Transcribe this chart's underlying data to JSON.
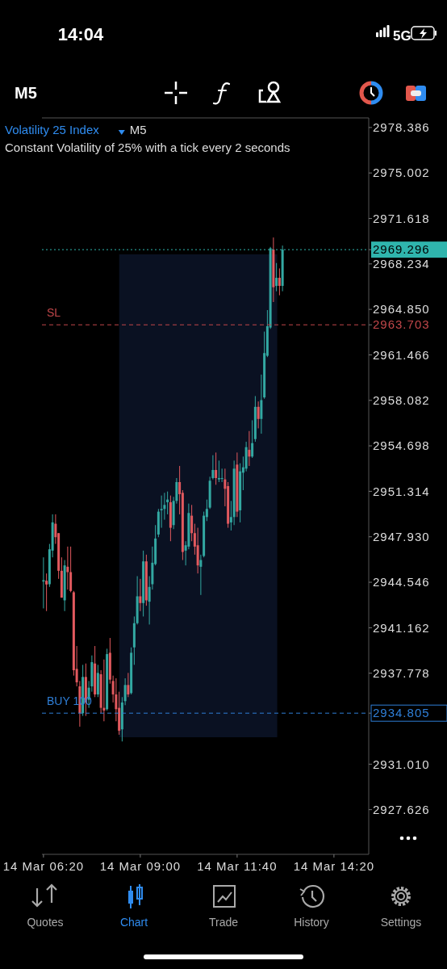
{
  "chart_data": {
    "type": "candlestick",
    "title": "Volatility 25 Index",
    "subtitle": "Constant Volatility of 25% with a tick every 2 seconds",
    "annotations": [
      "M5",
      "M5",
      "14:04",
      "5G",
      "Quotes",
      "Chart",
      "Trade",
      "History",
      "Settings"
    ],
    "categories": [
      "14 Mar 06:20",
      null,
      null,
      null,
      null,
      null,
      null,
      null,
      null,
      null,
      null,
      null,
      null,
      null,
      null,
      null,
      null,
      null,
      null,
      null,
      null,
      null,
      null,
      null,
      null,
      null,
      null,
      null,
      null,
      null,
      null,
      null,
      "14 Mar 09:00",
      null,
      null,
      null,
      null,
      null,
      null,
      null,
      null,
      null,
      null,
      null,
      null,
      null,
      null,
      null,
      null,
      null,
      null,
      null,
      null,
      null,
      null,
      null,
      null,
      null,
      null,
      null,
      null,
      null,
      null,
      null,
      "14 Mar 11:40",
      null,
      null,
      null,
      null,
      null,
      null,
      null,
      null,
      null,
      null,
      null,
      null,
      null,
      null,
      null,
      null,
      null,
      null,
      null,
      null,
      null,
      null,
      null,
      null,
      null,
      null,
      null,
      null,
      null,
      null,
      null,
      "14 Mar 14:20",
      null,
      null,
      null,
      null,
      null,
      null,
      null,
      null,
      null,
      null,
      null
    ],
    "ohlc": [
      [
        2944.6,
        2946.4,
        2942.6,
        2944.7
      ],
      [
        2944.66,
        2945.2,
        2942.4,
        2944.38
      ],
      [
        2944.4,
        2947.4,
        2944.2,
        2947.0
      ],
      [
        2946.9,
        2949.6,
        2946.4,
        2949.0
      ],
      [
        2948.9,
        2949.6,
        2947.4,
        2947.9
      ],
      [
        2948.2,
        2948.2,
        2944.8,
        2945.4
      ],
      [
        2945.4,
        2946.4,
        2943.4,
        2943.4
      ],
      [
        2943.2,
        2946.2,
        2942.4,
        2945.8
      ],
      [
        2945.7,
        2947.2,
        2944.0,
        2945.3
      ],
      [
        2945.3,
        2947.2,
        2943.8,
        2943.9
      ],
      [
        2943.8,
        2943.9,
        2937.6,
        2938.0
      ],
      [
        2938.1,
        2939.8,
        2936.8,
        2937.1
      ],
      [
        2936.8,
        2937.2,
        2933.8,
        2934.8
      ],
      [
        2934.8,
        2938.4,
        2934.6,
        2937.5
      ],
      [
        2937.5,
        2938.5,
        2934.6,
        2935.6
      ],
      [
        2935.8,
        2937.2,
        2935.2,
        2936.7
      ],
      [
        2936.8,
        2939.1,
        2936.4,
        2938.6
      ],
      [
        2938.5,
        2939.8,
        2936.0,
        2936.2
      ],
      [
        2936.2,
        2938.4,
        2936.0,
        2937.8
      ],
      [
        2937.7,
        2938.0,
        2934.8,
        2935.2
      ],
      [
        2935.2,
        2938.8,
        2934.2,
        2935.0
      ],
      [
        2935.1,
        2939.6,
        2935.0,
        2939.2
      ],
      [
        2939.3,
        2940.4,
        2937.0,
        2937.3
      ],
      [
        2937.2,
        2937.6,
        2935.6,
        2936.2
      ],
      [
        2936.2,
        2937.4,
        2934.2,
        2935.1
      ],
      [
        2935.2,
        2936.4,
        2933.2,
        2933.5
      ],
      [
        2933.6,
        2936.0,
        2932.7,
        2935.6
      ],
      [
        2935.7,
        2937.4,
        2935.4,
        2936.9
      ],
      [
        2936.9,
        2937.8,
        2936.0,
        2936.2
      ],
      [
        2936.3,
        2939.7,
        2936.2,
        2939.3
      ],
      [
        2939.7,
        2942.0,
        2938.4,
        2941.5
      ],
      [
        2941.5,
        2945.0,
        2941.4,
        2943.5
      ],
      [
        2943.5,
        2944.8,
        2942.4,
        2943.0
      ],
      [
        2943.0,
        2946.9,
        2942.0,
        2946.1
      ],
      [
        2946.1,
        2946.6,
        2942.8,
        2943.2
      ],
      [
        2943.1,
        2945.0,
        2941.4,
        2944.2
      ],
      [
        2944.4,
        2947.2,
        2944.0,
        2946.0
      ],
      [
        2945.9,
        2948.8,
        2945.8,
        2947.8
      ],
      [
        2948.1,
        2950.0,
        2947.9,
        2949.8
      ],
      [
        2949.9,
        2951.0,
        2948.6,
        2950.0
      ],
      [
        2950.0,
        2951.2,
        2949.2,
        2950.3
      ],
      [
        2950.5,
        2951.3,
        2949.6,
        2950.7
      ],
      [
        2950.5,
        2951.0,
        2947.6,
        2948.6
      ],
      [
        2948.8,
        2950.9,
        2948.5,
        2950.6
      ],
      [
        2950.6,
        2952.3,
        2950.4,
        2952.0
      ],
      [
        2952.0,
        2953.2,
        2949.6,
        2951.1
      ],
      [
        2951.2,
        2951.4,
        2946.2,
        2946.8
      ],
      [
        2946.9,
        2947.6,
        2945.8,
        2947.3
      ],
      [
        2947.2,
        2950.4,
        2947.0,
        2949.7
      ],
      [
        2949.5,
        2950.3,
        2947.6,
        2948.2
      ],
      [
        2948.2,
        2948.9,
        2946.6,
        2947.2
      ],
      [
        2947.3,
        2948.6,
        2945.2,
        2945.8
      ],
      [
        2945.7,
        2946.6,
        2943.6,
        2946.2
      ],
      [
        2946.5,
        2949.8,
        2946.4,
        2949.5
      ],
      [
        2949.4,
        2950.7,
        2949.1,
        2950.0
      ],
      [
        2950.1,
        2952.4,
        2950.0,
        2952.1
      ],
      [
        2952.3,
        2954.0,
        2952.2,
        2952.9
      ],
      [
        2952.9,
        2954.2,
        2951.8,
        2952.3
      ],
      [
        2952.2,
        2953.6,
        2952.0,
        2952.3
      ],
      [
        2952.3,
        2953.0,
        2952.0,
        2952.3
      ],
      [
        2952.2,
        2953.0,
        2950.2,
        2951.5
      ],
      [
        2951.7,
        2952.0,
        2948.6,
        2948.9
      ],
      [
        2949.0,
        2950.6,
        2948.4,
        2949.4
      ],
      [
        2949.4,
        2953.6,
        2948.8,
        2953.0
      ],
      [
        2953.3,
        2954.2,
        2949.4,
        2949.8
      ],
      [
        2949.9,
        2953.4,
        2949.0,
        2952.8
      ],
      [
        2952.7,
        2953.9,
        2951.4,
        2953.1
      ],
      [
        2953.0,
        2955.0,
        2952.8,
        2954.6
      ],
      [
        2954.4,
        2955.8,
        2953.2,
        2953.9
      ],
      [
        2953.9,
        2956.6,
        2953.8,
        2954.9
      ],
      [
        2955.2,
        2958.4,
        2955.0,
        2957.6
      ],
      [
        2957.6,
        2958.0,
        2956.0,
        2956.7
      ],
      [
        2956.7,
        2960.0,
        2955.6,
        2958.1
      ],
      [
        2958.3,
        2963.2,
        2958.2,
        2961.6
      ],
      [
        2961.4,
        2964.8,
        2961.3,
        2963.6
      ],
      [
        2963.5,
        2969.5,
        2963.4,
        2969.4
      ],
      [
        2969.3,
        2970.2,
        2965.4,
        2966.5
      ],
      [
        2966.6,
        2968.3,
        2966.2,
        2967.2
      ],
      [
        2967.2,
        2967.9,
        2965.9,
        2966.6
      ],
      [
        2966.6,
        2969.6,
        2966.2,
        2969.3
      ],
      null,
      null,
      null,
      null,
      null,
      null,
      null,
      null,
      null,
      null,
      null,
      null,
      null,
      null,
      null,
      null,
      null,
      null,
      null,
      null,
      null,
      null,
      null,
      null,
      null,
      null,
      null,
      null
    ],
    "ylim": [
      2924.3,
      2979.1
    ],
    "yticks": [
      2978.386,
      2975.002,
      2971.618,
      2969.296,
      2968.234,
      {
        "value": 2964.85,
        "label": "2964.850"
      },
      2963.703,
      2961.466,
      2958.082,
      2954.698,
      2951.314,
      {
        "value": 2947.93,
        "label": "2947.930"
      },
      2944.546,
      2941.162,
      2937.778,
      2934.805,
      {
        "value": 2931.01,
        "label": "2931.010"
      },
      2927.626
    ],
    "ref_lines": [
      {
        "axis": "y",
        "value": 2969.296,
        "color": "#2fb5ad",
        "line_style": "dotted"
      },
      {
        "axis": "y",
        "value": 2963.703,
        "label": "SL",
        "color": "#c2474a",
        "line_style": "dashed"
      },
      {
        "axis": "y",
        "value": 2934.805,
        "label": "BUY 100",
        "color": "#2f7fd8",
        "line_style": "dashed"
      }
    ],
    "grid": false
  }
}
